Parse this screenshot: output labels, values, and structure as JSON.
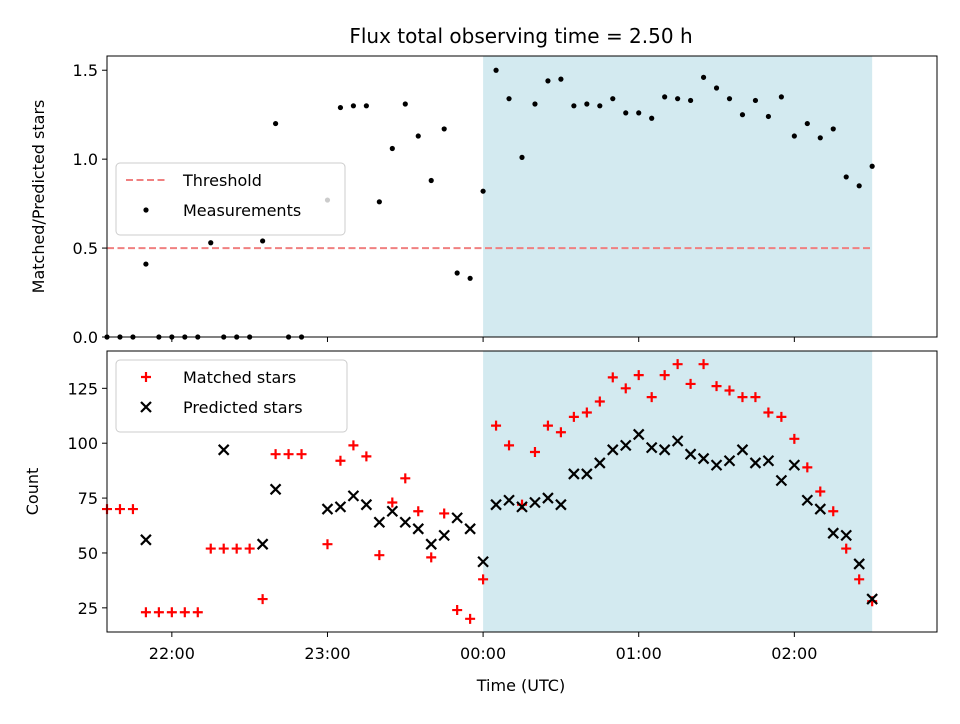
{
  "chart_data": {
    "title": "Flux total observing time = 2.50 h",
    "xlabel": "Time (UTC)",
    "x_ticks": [
      "22:00",
      "23:00",
      "00:00",
      "01:00",
      "02:00"
    ],
    "shaded_region": {
      "start": "00:00",
      "end": "02:30",
      "color": "#d3eaf0"
    },
    "panels": [
      {
        "type": "scatter",
        "ylabel": "Matched/Predicted stars",
        "ylim": [
          0,
          1.58
        ],
        "y_ticks": [
          "0.0",
          "0.5",
          "1.0",
          "1.5"
        ],
        "legend_position": "center-left",
        "threshold": {
          "name": "Threshold",
          "value": 0.5,
          "x_range": [
            "21:35",
            "02:30"
          ],
          "color": "#f08080"
        },
        "series": [
          {
            "name": "Measurements",
            "color": "#000000",
            "marker": "dot",
            "points": [
              [
                "21:35",
                0.0
              ],
              [
                "21:40",
                0.0
              ],
              [
                "21:45",
                0.0
              ],
              [
                "21:50",
                0.41
              ],
              [
                "21:55",
                0.0
              ],
              [
                "22:00",
                0.0
              ],
              [
                "22:05",
                0.0
              ],
              [
                "22:10",
                0.0
              ],
              [
                "22:15",
                0.53
              ],
              [
                "22:20",
                0.0
              ],
              [
                "22:25",
                0.0
              ],
              [
                "22:30",
                0.0
              ],
              [
                "22:35",
                0.54
              ],
              [
                "22:40",
                1.2
              ],
              [
                "22:45",
                0.0
              ],
              [
                "22:50",
                0.0
              ],
              [
                "23:00",
                0.77
              ],
              [
                "23:05",
                1.29
              ],
              [
                "23:10",
                1.3
              ],
              [
                "23:15",
                1.3
              ],
              [
                "23:20",
                0.76
              ],
              [
                "23:25",
                1.06
              ],
              [
                "23:30",
                1.31
              ],
              [
                "23:35",
                1.13
              ],
              [
                "23:40",
                0.88
              ],
              [
                "23:45",
                1.17
              ],
              [
                "23:50",
                0.36
              ],
              [
                "23:55",
                0.33
              ],
              [
                "00:00",
                0.82
              ],
              [
                "00:05",
                1.5
              ],
              [
                "00:10",
                1.34
              ],
              [
                "00:15",
                1.01
              ],
              [
                "00:20",
                1.31
              ],
              [
                "00:25",
                1.44
              ],
              [
                "00:30",
                1.45
              ],
              [
                "00:35",
                1.3
              ],
              [
                "00:40",
                1.31
              ],
              [
                "00:45",
                1.3
              ],
              [
                "00:50",
                1.34
              ],
              [
                "00:55",
                1.26
              ],
              [
                "01:00",
                1.26
              ],
              [
                "01:05",
                1.23
              ],
              [
                "01:10",
                1.35
              ],
              [
                "01:15",
                1.34
              ],
              [
                "01:20",
                1.33
              ],
              [
                "01:25",
                1.46
              ],
              [
                "01:30",
                1.4
              ],
              [
                "01:35",
                1.34
              ],
              [
                "01:40",
                1.25
              ],
              [
                "01:45",
                1.33
              ],
              [
                "01:50",
                1.24
              ],
              [
                "01:55",
                1.35
              ],
              [
                "02:00",
                1.13
              ],
              [
                "02:05",
                1.2
              ],
              [
                "02:10",
                1.12
              ],
              [
                "02:15",
                1.17
              ],
              [
                "02:20",
                0.9
              ],
              [
                "02:25",
                0.85
              ],
              [
                "02:30",
                0.96
              ]
            ]
          }
        ]
      },
      {
        "type": "scatter",
        "ylabel": "Count",
        "ylim": [
          14,
          142
        ],
        "y_ticks": [
          "25",
          "50",
          "75",
          "100",
          "125"
        ],
        "legend_position": "top-left",
        "series": [
          {
            "name": "Matched stars",
            "color": "#ff0000",
            "marker": "plus",
            "points": [
              [
                "21:35",
                70
              ],
              [
                "21:40",
                70
              ],
              [
                "21:45",
                70
              ],
              [
                "21:50",
                23
              ],
              [
                "21:55",
                23
              ],
              [
                "22:00",
                23
              ],
              [
                "22:05",
                23
              ],
              [
                "22:10",
                23
              ],
              [
                "22:15",
                52
              ],
              [
                "22:20",
                52
              ],
              [
                "22:25",
                52
              ],
              [
                "22:30",
                52
              ],
              [
                "22:35",
                29
              ],
              [
                "22:40",
                95
              ],
              [
                "22:45",
                95
              ],
              [
                "22:50",
                95
              ],
              [
                "23:00",
                54
              ],
              [
                "23:05",
                92
              ],
              [
                "23:10",
                99
              ],
              [
                "23:15",
                94
              ],
              [
                "23:20",
                49
              ],
              [
                "23:25",
                73
              ],
              [
                "23:30",
                84
              ],
              [
                "23:35",
                69
              ],
              [
                "23:40",
                48
              ],
              [
                "23:45",
                68
              ],
              [
                "23:50",
                24
              ],
              [
                "23:55",
                20
              ],
              [
                "00:00",
                38
              ],
              [
                "00:05",
                108
              ],
              [
                "00:10",
                99
              ],
              [
                "00:15",
                72
              ],
              [
                "00:20",
                96
              ],
              [
                "00:25",
                108
              ],
              [
                "00:30",
                105
              ],
              [
                "00:35",
                112
              ],
              [
                "00:40",
                114
              ],
              [
                "00:45",
                119
              ],
              [
                "00:50",
                130
              ],
              [
                "00:55",
                125
              ],
              [
                "01:00",
                131
              ],
              [
                "01:05",
                121
              ],
              [
                "01:10",
                131
              ],
              [
                "01:15",
                136
              ],
              [
                "01:20",
                127
              ],
              [
                "01:25",
                136
              ],
              [
                "01:30",
                126
              ],
              [
                "01:35",
                124
              ],
              [
                "01:40",
                121
              ],
              [
                "01:45",
                121
              ],
              [
                "01:50",
                114
              ],
              [
                "01:55",
                112
              ],
              [
                "02:00",
                102
              ],
              [
                "02:05",
                89
              ],
              [
                "02:10",
                78
              ],
              [
                "02:15",
                69
              ],
              [
                "02:20",
                52
              ],
              [
                "02:25",
                38
              ],
              [
                "02:30",
                28
              ]
            ]
          },
          {
            "name": "Predicted stars",
            "color": "#000000",
            "marker": "x",
            "points": [
              [
                "21:50",
                56
              ],
              [
                "22:20",
                97
              ],
              [
                "22:35",
                54
              ],
              [
                "22:40",
                79
              ],
              [
                "23:00",
                70
              ],
              [
                "23:05",
                71
              ],
              [
                "23:10",
                76
              ],
              [
                "23:15",
                72
              ],
              [
                "23:20",
                64
              ],
              [
                "23:25",
                69
              ],
              [
                "23:30",
                64
              ],
              [
                "23:35",
                61
              ],
              [
                "23:40",
                54
              ],
              [
                "23:45",
                58
              ],
              [
                "23:50",
                66
              ],
              [
                "23:55",
                61
              ],
              [
                "00:00",
                46
              ],
              [
                "00:05",
                72
              ],
              [
                "00:10",
                74
              ],
              [
                "00:15",
                71
              ],
              [
                "00:20",
                73
              ],
              [
                "00:25",
                75
              ],
              [
                "00:30",
                72
              ],
              [
                "00:35",
                86
              ],
              [
                "00:40",
                86
              ],
              [
                "00:45",
                91
              ],
              [
                "00:50",
                97
              ],
              [
                "00:55",
                99
              ],
              [
                "01:00",
                104
              ],
              [
                "01:05",
                98
              ],
              [
                "01:10",
                97
              ],
              [
                "01:15",
                101
              ],
              [
                "01:20",
                95
              ],
              [
                "01:25",
                93
              ],
              [
                "01:30",
                90
              ],
              [
                "01:35",
                92
              ],
              [
                "01:40",
                97
              ],
              [
                "01:45",
                91
              ],
              [
                "01:50",
                92
              ],
              [
                "01:55",
                83
              ],
              [
                "02:00",
                90
              ],
              [
                "02:05",
                74
              ],
              [
                "02:10",
                70
              ],
              [
                "02:15",
                59
              ],
              [
                "02:20",
                58
              ],
              [
                "02:25",
                45
              ],
              [
                "02:30",
                29
              ]
            ]
          }
        ]
      }
    ]
  }
}
